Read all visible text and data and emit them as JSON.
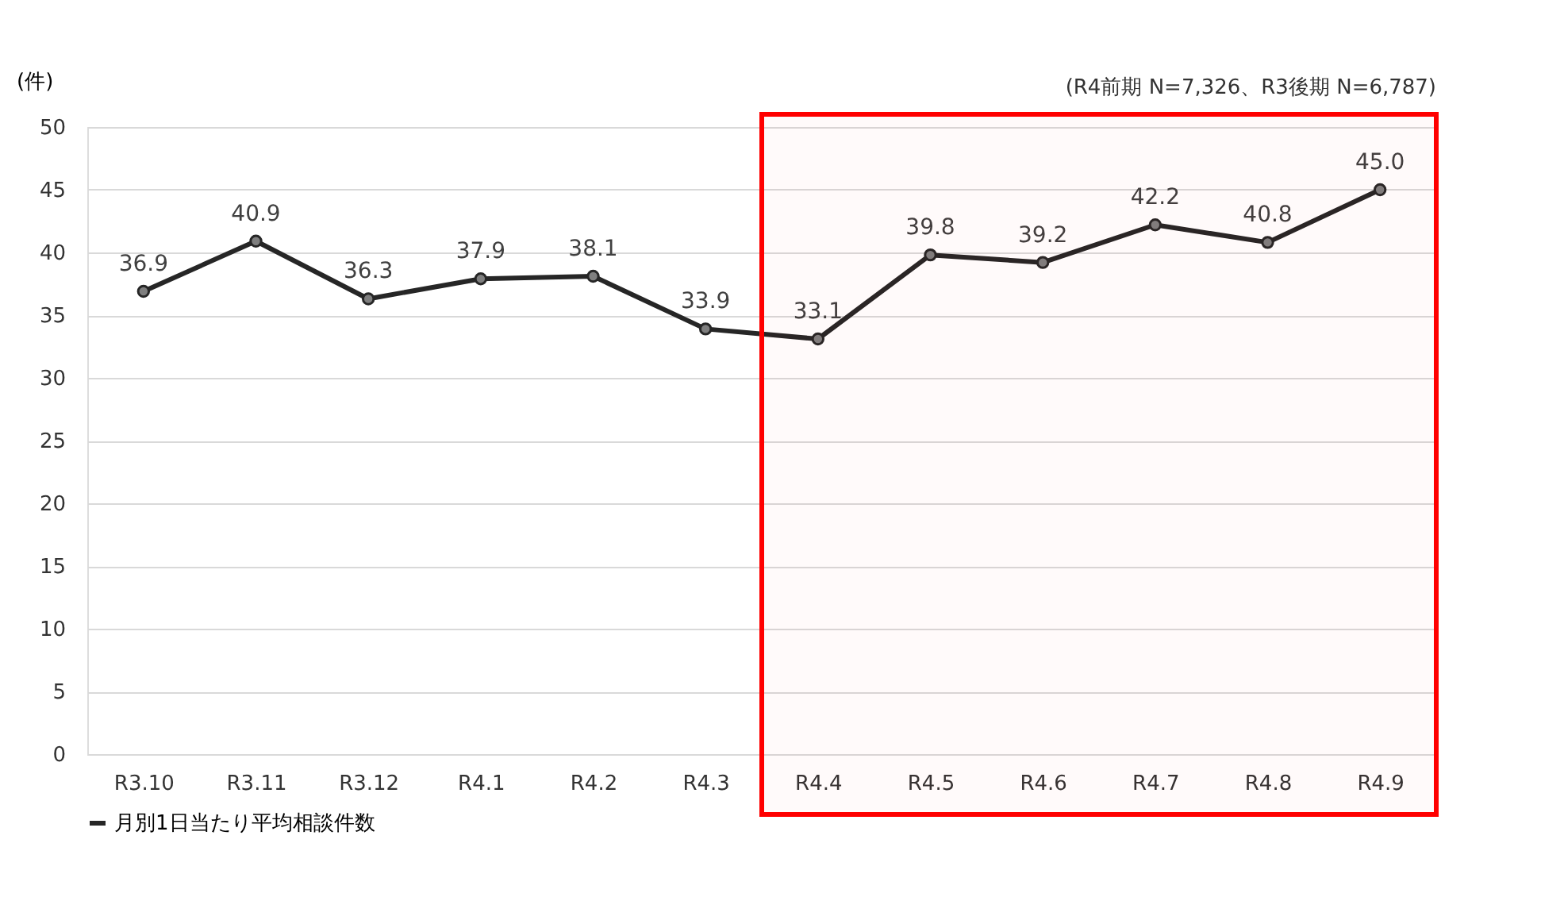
{
  "chart_data": {
    "type": "line",
    "ylabel": "(件)",
    "categories": [
      "R3.10",
      "R3.11",
      "R3.12",
      "R4.1",
      "R4.2",
      "R4.3",
      "R4.4",
      "R4.5",
      "R4.6",
      "R4.7",
      "R4.8",
      "R4.9"
    ],
    "series": [
      {
        "name": "月別1日当たり平均相談件数",
        "color": "#262626",
        "values": [
          36.9,
          40.9,
          36.3,
          37.9,
          38.1,
          33.9,
          33.1,
          39.8,
          39.2,
          42.2,
          40.8,
          45.0
        ],
        "value_labels": [
          "36.9",
          "40.9",
          "36.3",
          "37.9",
          "38.1",
          "33.9",
          "33.1",
          "39.8",
          "39.2",
          "42.2",
          "40.8",
          "45.0"
        ]
      }
    ],
    "ylim": [
      0,
      50
    ],
    "yticks": [
      0,
      5,
      10,
      15,
      20,
      25,
      30,
      35,
      40,
      45,
      50
    ],
    "grid": "y",
    "legend": "bottom",
    "marker": "circle",
    "line_style": "solid",
    "bands": [
      {
        "axis": "x",
        "from": "R4.4",
        "to": "R4.9",
        "color": "#ff0000"
      }
    ],
    "annotations": [
      "(R4前期 N=7,326、R3後期 N=6,787)"
    ]
  }
}
